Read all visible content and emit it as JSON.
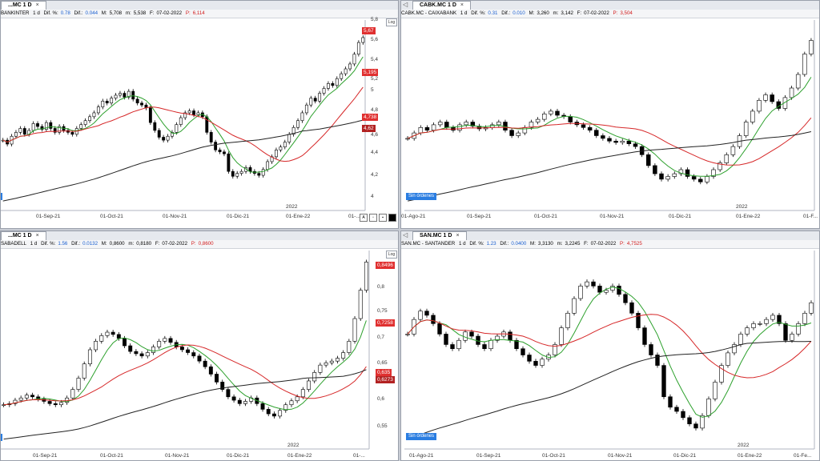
{
  "colors": {
    "ma_short": "#2ca02c",
    "ma_mid": "#d62728",
    "ma_long": "#222222",
    "up": "#ffffff",
    "down": "#000000",
    "accent": "#e03030",
    "badge": "#2a7de1"
  },
  "panels": [
    {
      "id": "bankinter",
      "tab_label": "...MC 1 D",
      "title": "BANKINTER",
      "info": {
        "period": "1 d",
        "change_pct_label": "Dif. %:",
        "change_pct": "0.78",
        "change_label": "Dif.:",
        "change": "0.044",
        "high_label": "M:",
        "high": "5,708",
        "low_label": "m:",
        "low": "5,538",
        "date_label": "F:",
        "date": "07-02-2022",
        "price_label": "P:",
        "price": "6,114"
      },
      "y_labels": [
        "5,8",
        "5,6",
        "5,4",
        "5,2",
        "5",
        "4,8",
        "4,6",
        "4,4",
        "4,2",
        "4"
      ],
      "x_labels": [
        "01-Sep-21",
        "01-Oct-21",
        "01-Nov-21",
        "01-Dic-21",
        "01-Ene-22",
        "01-..."
      ],
      "year_label": "2022",
      "price_tags": [
        "5,67",
        "5,195",
        "4,738",
        "4,62"
      ],
      "badge": "",
      "log_label": "Log"
    },
    {
      "id": "caixabank",
      "tab_label": "CABK.MC 1 D",
      "title": "CABK.MC - CAIXABANK",
      "info": {
        "period": "1 d",
        "change_pct_label": "Dif. %:",
        "change_pct": "0.31",
        "change_label": "Dif.:",
        "change": "0.010",
        "high_label": "M:",
        "high": "3,260",
        "low_label": "m:",
        "low": "3,142",
        "date_label": "F:",
        "date": "07-02-2022",
        "price_label": "P:",
        "price": "3,504"
      },
      "y_labels": [],
      "x_labels": [
        "01-Ago-21",
        "01-Sep-21",
        "01-Oct-21",
        "01-Nov-21",
        "01-Dic-21",
        "01-Ene-22",
        "01-F..."
      ],
      "year_label": "2022",
      "price_tags": [],
      "badge": "Sin órdenes",
      "log_label": ""
    },
    {
      "id": "sabadell",
      "tab_label": "...MC 1 D",
      "title": "SABADELL",
      "info": {
        "period": "1 d",
        "change_pct_label": "Dif. %:",
        "change_pct": "1.56",
        "change_label": "Dif.:",
        "change": "0.0132",
        "high_label": "M:",
        "high": "0,8600",
        "low_label": "m:",
        "low": "0,8180",
        "date_label": "F:",
        "date": "07-02-2022",
        "price_label": "P:",
        "price": "0,8600"
      },
      "y_labels": [
        "0,8",
        "0,75",
        "0,7",
        "0,65",
        "0,6",
        "0,55"
      ],
      "x_labels": [
        "01-Sep-21",
        "01-Oct-21",
        "01-Nov-21",
        "01-Dic-21",
        "01-Ene-22",
        "01-..."
      ],
      "year_label": "2022",
      "price_tags": [
        "0,8496",
        "0,7258",
        "0,635",
        "0,6273"
      ],
      "badge": "",
      "log_label": "Log"
    },
    {
      "id": "santander",
      "tab_label": "SAN.MC 1 D",
      "title": "SAN.MC - SANTANDER",
      "info": {
        "period": "1 d",
        "change_pct_label": "Dif. %:",
        "change_pct": "1.23",
        "change_label": "Dif.:",
        "change": "0.0400",
        "high_label": "M:",
        "high": "3,3130",
        "low_label": "m:",
        "low": "3,2245",
        "date_label": "F:",
        "date": "07-02-2022",
        "price_label": "P:",
        "price": "4,7525"
      },
      "y_labels": [],
      "x_labels": [
        "01-Ago-21",
        "01-Sep-21",
        "01-Oct-21",
        "01-Nov-21",
        "01-Dic-21",
        "01-Ene-22",
        "01-Fe..."
      ],
      "year_label": "2022",
      "price_tags": [],
      "badge": "Sin órdenes",
      "log_label": ""
    }
  ],
  "chart_data": [
    {
      "type": "candlestick",
      "title": "BANKINTER",
      "ylim": [
        3.9,
        5.85
      ],
      "close": [
        4.62,
        4.58,
        4.66,
        4.7,
        4.74,
        4.68,
        4.72,
        4.79,
        4.76,
        4.73,
        4.8,
        4.74,
        4.7,
        4.76,
        4.72,
        4.7,
        4.68,
        4.74,
        4.78,
        4.82,
        4.86,
        4.9,
        4.96,
        5.02,
        5.0,
        5.05,
        5.08,
        5.1,
        5.06,
        5.12,
        5.04,
        5.0,
        4.98,
        4.95,
        4.8,
        4.72,
        4.65,
        4.62,
        4.66,
        4.7,
        4.78,
        4.85,
        4.9,
        4.92,
        4.88,
        4.9,
        4.86,
        4.7,
        4.6,
        4.52,
        4.5,
        4.48,
        4.3,
        4.25,
        4.28,
        4.3,
        4.34,
        4.3,
        4.28,
        4.26,
        4.32,
        4.4,
        4.45,
        4.52,
        4.55,
        4.6,
        4.68,
        4.75,
        4.82,
        4.9,
        4.98,
        5.05,
        5.02,
        5.1,
        5.15,
        5.2,
        5.18,
        5.25,
        5.3,
        5.35,
        5.4,
        5.5,
        5.62,
        5.67
      ]
    },
    {
      "type": "candlestick",
      "title": "CABK.MC - CAIXABANK",
      "ylim": [
        2.25,
        3.65
      ],
      "close": [
        2.78,
        2.82,
        2.86,
        2.84,
        2.88,
        2.9,
        2.86,
        2.84,
        2.88,
        2.9,
        2.87,
        2.85,
        2.86,
        2.88,
        2.9,
        2.84,
        2.8,
        2.82,
        2.86,
        2.9,
        2.92,
        2.96,
        2.98,
        2.95,
        2.94,
        2.9,
        2.88,
        2.86,
        2.84,
        2.8,
        2.78,
        2.76,
        2.75,
        2.76,
        2.74,
        2.72,
        2.66,
        2.58,
        2.52,
        2.48,
        2.5,
        2.52,
        2.55,
        2.5,
        2.48,
        2.46,
        2.5,
        2.55,
        2.6,
        2.66,
        2.72,
        2.8,
        2.9,
        2.98,
        3.06,
        3.1,
        3.05,
        3.0,
        3.08,
        3.15,
        3.25,
        3.4,
        3.5
      ]
    },
    {
      "type": "candlestick",
      "title": "SABADELL",
      "ylim": [
        0.52,
        0.87
      ],
      "close": [
        0.598,
        0.6,
        0.606,
        0.61,
        0.615,
        0.612,
        0.608,
        0.604,
        0.6,
        0.598,
        0.602,
        0.61,
        0.625,
        0.645,
        0.67,
        0.695,
        0.71,
        0.72,
        0.726,
        0.722,
        0.715,
        0.702,
        0.692,
        0.688,
        0.684,
        0.69,
        0.7,
        0.71,
        0.715,
        0.708,
        0.7,
        0.695,
        0.69,
        0.684,
        0.675,
        0.665,
        0.652,
        0.638,
        0.625,
        0.612,
        0.606,
        0.6,
        0.604,
        0.61,
        0.6,
        0.59,
        0.582,
        0.578,
        0.588,
        0.598,
        0.605,
        0.612,
        0.625,
        0.64,
        0.655,
        0.668,
        0.672,
        0.675,
        0.68,
        0.69,
        0.71,
        0.75,
        0.8,
        0.8496
      ]
    },
    {
      "type": "candlestick",
      "title": "SAN.MC - SANTANDER",
      "ylim": [
        2.5,
        3.45
      ],
      "close": [
        3.05,
        3.12,
        3.16,
        3.14,
        3.1,
        3.05,
        3.0,
        2.98,
        3.02,
        3.06,
        3.04,
        3.0,
        2.98,
        3.02,
        3.04,
        3.06,
        3.02,
        2.98,
        2.95,
        2.92,
        2.9,
        2.93,
        2.95,
        3.0,
        3.08,
        3.15,
        3.22,
        3.28,
        3.3,
        3.28,
        3.25,
        3.26,
        3.28,
        3.24,
        3.2,
        3.15,
        3.08,
        3.0,
        2.95,
        2.9,
        2.75,
        2.7,
        2.68,
        2.65,
        2.62,
        2.6,
        2.66,
        2.74,
        2.82,
        2.9,
        2.96,
        3.0,
        3.05,
        3.08,
        3.1,
        3.1,
        3.12,
        3.14,
        3.1,
        3.02,
        3.05,
        3.1,
        3.15,
        3.2
      ]
    }
  ]
}
